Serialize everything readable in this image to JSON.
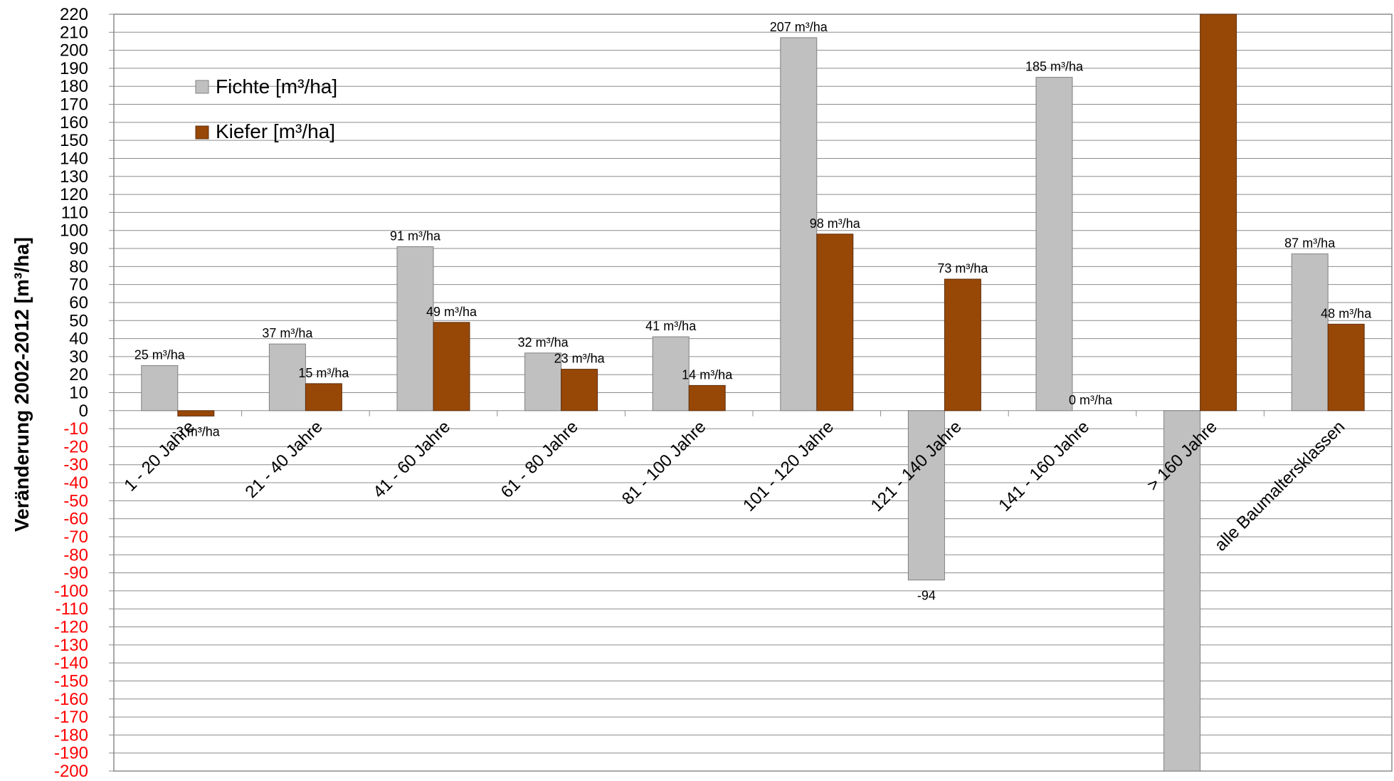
{
  "chart_data": {
    "type": "bar",
    "title": "",
    "xlabel": "",
    "ylabel": "Veränderung 2002-2012 [m³/ha]",
    "ylim": [
      -200,
      220
    ],
    "ytick_step": 10,
    "grid": true,
    "legend_position": "top-left",
    "categories": [
      "1 - 20 Jahre",
      "21 - 40 Jahre",
      "41 - 60 Jahre",
      "61 - 80 Jahre",
      "81 - 100 Jahre",
      "101 - 120 Jahre",
      "121 - 140 Jahre",
      "141 - 160 Jahre",
      "> 160 Jahre",
      "alle Baumaltersklassen"
    ],
    "series": [
      {
        "name": "Fichte [m³/ha]",
        "color": "#c0c0c0",
        "values": [
          25,
          37,
          91,
          32,
          41,
          207,
          -94,
          185,
          -200,
          87
        ],
        "labels": [
          "25 m³/ha",
          "37 m³/ha",
          "91 m³/ha",
          "32 m³/ha",
          "41 m³/ha",
          "207 m³/ha",
          "-94",
          "185 m³/ha",
          "",
          "87 m³/ha"
        ]
      },
      {
        "name": "Kiefer [m³/ha]",
        "color": "#974706",
        "values": [
          -3,
          15,
          49,
          23,
          14,
          98,
          73,
          0,
          220,
          48
        ],
        "labels": [
          "-3 m³/ha",
          "15 m³/ha",
          "49 m³/ha",
          "23 m³/ha",
          "14 m³/ha",
          "98 m³/ha",
          "73 m³/ha",
          "0 m³/ha",
          "",
          "48 m³/ha"
        ]
      }
    ],
    "colors": {
      "positive_tick": "#000000",
      "negative_tick": "#ff0000",
      "negative_label": "#ff0000",
      "grid": "#8c8c8c"
    }
  }
}
